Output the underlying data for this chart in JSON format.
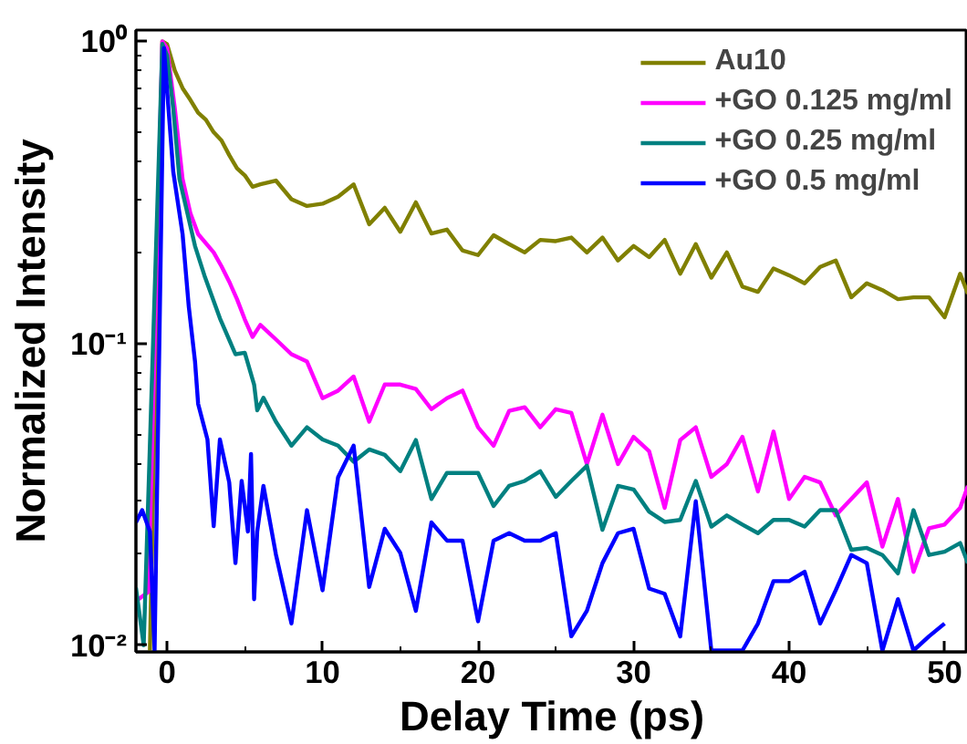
{
  "chart_data": {
    "type": "line",
    "xlabel": "Delay Time (ps)",
    "ylabel": "Normalized Intensity",
    "log": "y",
    "xlim": [
      -2,
      51.5
    ],
    "ylim": [
      0.0095,
      1.09
    ],
    "xticks": [
      0,
      10,
      20,
      30,
      40,
      50
    ],
    "yticks": [
      {
        "value": 0.01,
        "label": "10⁻²"
      },
      {
        "value": 0.1,
        "label": "10⁻¹"
      },
      {
        "value": 1,
        "label": "10⁰"
      }
    ],
    "grid": false,
    "legend": "top right",
    "marker": "none",
    "line_style": "solid",
    "series": [
      {
        "name": "Au10",
        "color": "#808000",
        "x": [
          -1.1,
          -0.3,
          0,
          0.5,
          1,
          1.5,
          2,
          2.5,
          3,
          3.5,
          4,
          4.5,
          5,
          5.5,
          6,
          7,
          8,
          9,
          10,
          11,
          12,
          13,
          14,
          15,
          16,
          17,
          18,
          19,
          20,
          21,
          22,
          23,
          24,
          25,
          26,
          27,
          28,
          29,
          30,
          31,
          32,
          33,
          34,
          35,
          36,
          37,
          38,
          39,
          40,
          41,
          42,
          43,
          44,
          45,
          46,
          47,
          48,
          49,
          50,
          51,
          51.5
        ],
        "values": [
          0.0096,
          1.0,
          0.98,
          0.8,
          0.7,
          0.64,
          0.58,
          0.55,
          0.5,
          0.47,
          0.42,
          0.38,
          0.36,
          0.33,
          0.336,
          0.346,
          0.3,
          0.285,
          0.29,
          0.306,
          0.336,
          0.248,
          0.281,
          0.234,
          0.293,
          0.231,
          0.238,
          0.203,
          0.196,
          0.228,
          0.213,
          0.2,
          0.22,
          0.218,
          0.224,
          0.2,
          0.224,
          0.188,
          0.21,
          0.193,
          0.22,
          0.17,
          0.213,
          0.165,
          0.2,
          0.154,
          0.148,
          0.177,
          0.168,
          0.158,
          0.179,
          0.188,
          0.142,
          0.158,
          0.15,
          0.14,
          0.142,
          0.142,
          0.122,
          0.17,
          0.146
        ]
      },
      {
        "name": "+GO 0.125 mg/ml",
        "color": "#ff00ff",
        "x": [
          -2,
          -1.2,
          -0.3,
          0,
          0.5,
          1,
          1.5,
          2,
          3,
          3.5,
          4,
          4.5,
          5,
          5.5,
          6,
          7,
          8,
          9,
          10,
          11,
          12,
          13,
          14,
          15,
          16,
          17,
          18,
          19,
          20,
          21,
          22,
          23,
          24,
          25,
          26,
          27,
          28,
          29,
          30,
          31,
          32,
          33,
          34,
          35,
          36,
          37,
          38,
          39,
          40,
          41,
          42,
          43,
          44,
          45,
          46,
          47,
          48,
          49,
          50,
          51,
          51.5
        ],
        "values": [
          0.014,
          0.015,
          1.0,
          0.95,
          0.6,
          0.35,
          0.27,
          0.23,
          0.2,
          0.18,
          0.16,
          0.14,
          0.12,
          0.105,
          0.115,
          0.103,
          0.092,
          0.087,
          0.0658,
          0.0697,
          0.0776,
          0.055,
          0.073,
          0.073,
          0.0706,
          0.0605,
          0.0658,
          0.0697,
          0.0527,
          0.0458,
          0.0597,
          0.0614,
          0.0527,
          0.0605,
          0.0588,
          0.0398,
          0.058,
          0.0398,
          0.049,
          0.0439,
          0.0285,
          0.0478,
          0.0527,
          0.0361,
          0.0398,
          0.049,
          0.0323,
          0.051,
          0.0305,
          0.0361,
          0.0346,
          0.0269,
          0.0305,
          0.0346,
          0.0212,
          0.0305,
          0.0175,
          0.0244,
          0.0251,
          0.0285,
          0.0337
        ]
      },
      {
        "name": "+GO 0.25 mg/ml",
        "color": "#008080",
        "x": [
          -2,
          -1.5,
          -0.3,
          0,
          0.4,
          0.8,
          1.8,
          2.4,
          3.4,
          4.4,
          5,
          5.6,
          5.8,
          6.2,
          7,
          8,
          9,
          10,
          11,
          12,
          13,
          14,
          15,
          16,
          17,
          18,
          19,
          20,
          21,
          22,
          23,
          24,
          25,
          26,
          27,
          28,
          29,
          30,
          31,
          32,
          33,
          34,
          35,
          36,
          37,
          38,
          39,
          40,
          41,
          42,
          43,
          44,
          45,
          46,
          47,
          48,
          49,
          50,
          51,
          51.5
        ],
        "values": [
          0.0155,
          0.01,
          0.98,
          0.9,
          0.6,
          0.35,
          0.21,
          0.168,
          0.121,
          0.092,
          0.093,
          0.073,
          0.06,
          0.066,
          0.055,
          0.0458,
          0.0527,
          0.048,
          0.0458,
          0.0405,
          0.0445,
          0.0427,
          0.0377,
          0.0478,
          0.0305,
          0.0372,
          0.0372,
          0.0372,
          0.0289,
          0.0337,
          0.035,
          0.0377,
          0.031,
          0.035,
          0.0393,
          0.0241,
          0.0337,
          0.0328,
          0.0277,
          0.0256,
          0.026,
          0.035,
          0.0247,
          0.0269,
          0.0251,
          0.0235,
          0.026,
          0.026,
          0.0247,
          0.028,
          0.028,
          0.0207,
          0.021,
          0.0199,
          0.0173,
          0.028,
          0.0199,
          0.0204,
          0.0218,
          0.0187
        ]
      },
      {
        "name": "+GO 0.5 mg/ml",
        "color": "#0000ff",
        "x": [
          -2,
          -1.6,
          -1.1,
          -0.8,
          -0.2,
          0.4,
          1,
          1.4,
          1.8,
          2,
          2.6,
          3,
          3.4,
          4,
          4.4,
          4.8,
          5.2,
          5.4,
          5.6,
          5.8,
          6.2,
          7,
          8,
          9,
          10,
          11,
          12,
          13,
          14,
          15,
          16,
          17,
          18,
          19,
          20,
          21,
          22,
          23,
          24,
          25,
          26,
          27,
          28,
          29,
          30,
          31,
          32,
          33,
          34,
          35,
          36,
          37,
          38,
          39,
          40,
          41,
          42,
          43,
          44,
          45,
          46,
          47,
          48,
          49,
          50
        ],
        "values": [
          0.0255,
          0.028,
          0.0238,
          0.0096,
          0.95,
          0.37,
          0.23,
          0.132,
          0.087,
          0.063,
          0.048,
          0.0248,
          0.048,
          0.0346,
          0.0187,
          0.035,
          0.0238,
          0.043,
          0.0142,
          0.0238,
          0.0337,
          0.02,
          0.0118,
          0.028,
          0.0152,
          0.036,
          0.0458,
          0.0156,
          0.0243,
          0.0202,
          0.013,
          0.0255,
          0.0222,
          0.0222,
          0.012,
          0.0222,
          0.0235,
          0.0222,
          0.0222,
          0.0235,
          0.0107,
          0.013,
          0.0187,
          0.0235,
          0.0243,
          0.0154,
          0.0148,
          0.0107,
          0.03,
          0.0096,
          0.0096,
          0.0096,
          0.0118,
          0.0163,
          0.0163,
          0.0175,
          0.0118,
          0.0152,
          0.0199,
          0.0187,
          0.0096,
          0.0142,
          0.0096,
          0.0107,
          0.0118
        ]
      }
    ]
  }
}
